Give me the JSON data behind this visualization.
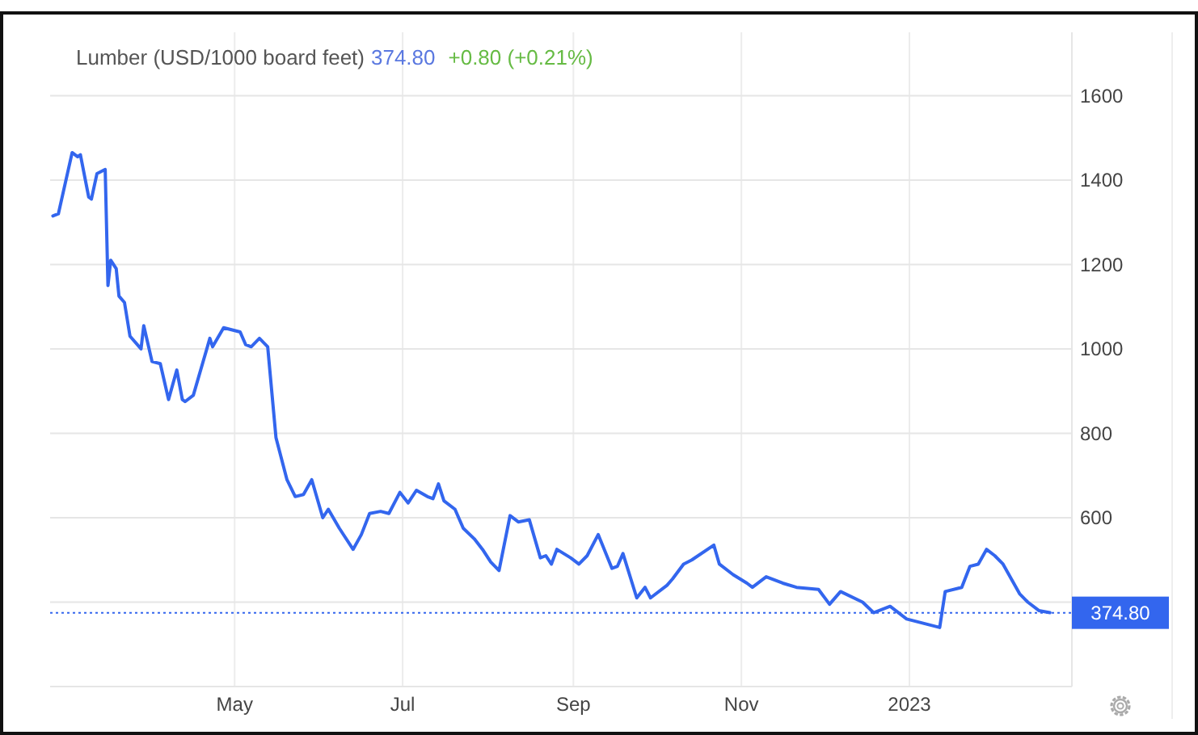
{
  "chart_data": {
    "type": "line",
    "title": "Lumber (USD/1000 board feet)",
    "annotations": [
      "374.80",
      "+0.80 (+0.21%)"
    ],
    "x": [
      "2022-02-24",
      "2022-02-26",
      "2022-03-03",
      "2022-03-05",
      "2022-03-06",
      "2022-03-09",
      "2022-03-10",
      "2022-03-12",
      "2022-03-15",
      "2022-03-16",
      "2022-03-17",
      "2022-03-19",
      "2022-03-20",
      "2022-03-22",
      "2022-03-24",
      "2022-03-28",
      "2022-03-29",
      "2022-04-01",
      "2022-04-04",
      "2022-04-07",
      "2022-04-10",
      "2022-04-12",
      "2022-04-13",
      "2022-04-16",
      "2022-04-18",
      "2022-04-22",
      "2022-04-23",
      "2022-04-27",
      "2022-05-03",
      "2022-05-05",
      "2022-05-07",
      "2022-05-10",
      "2022-05-13",
      "2022-05-16",
      "2022-05-20",
      "2022-05-23",
      "2022-05-26",
      "2022-05-29",
      "2022-06-02",
      "2022-06-04",
      "2022-06-08",
      "2022-06-13",
      "2022-06-16",
      "2022-06-19",
      "2022-06-23",
      "2022-06-26",
      "2022-06-30",
      "2022-07-03",
      "2022-07-06",
      "2022-07-10",
      "2022-07-12",
      "2022-07-14",
      "2022-07-16",
      "2022-07-20",
      "2022-07-23",
      "2022-07-27",
      "2022-07-30",
      "2022-08-02",
      "2022-08-05",
      "2022-08-09",
      "2022-08-12",
      "2022-08-16",
      "2022-08-20",
      "2022-08-22",
      "2022-08-24",
      "2022-08-26",
      "2022-08-31",
      "2022-09-03",
      "2022-09-06",
      "2022-09-10",
      "2022-09-15",
      "2022-09-17",
      "2022-09-19",
      "2022-09-24",
      "2022-09-27",
      "2022-09-29",
      "2022-10-05",
      "2022-10-07",
      "2022-10-11",
      "2022-10-14",
      "2022-10-22",
      "2022-10-24",
      "2022-10-29",
      "2022-11-03",
      "2022-11-05",
      "2022-11-10",
      "2022-11-16",
      "2022-11-21",
      "2022-11-29",
      "2022-12-03",
      "2022-12-07",
      "2022-12-15",
      "2022-12-19",
      "2022-12-25",
      "2022-12-31",
      "2023-01-06",
      "2023-01-12",
      "2023-01-14",
      "2023-01-20",
      "2023-01-23",
      "2023-01-26",
      "2023-01-29",
      "2023-02-01",
      "2023-02-04",
      "2023-02-10",
      "2023-02-13",
      "2023-02-17",
      "2023-02-21"
    ],
    "series": [
      {
        "color": "#3366ee",
        "values": [
          1315,
          1320,
          1465,
          1455,
          1460,
          1360,
          1355,
          1415,
          1425,
          1150,
          1210,
          1190,
          1125,
          1110,
          1030,
          1000,
          1055,
          970,
          965,
          880,
          950,
          880,
          875,
          890,
          935,
          1025,
          1005,
          1050,
          1040,
          1010,
          1005,
          1025,
          1005,
          790,
          690,
          650,
          655,
          690,
          600,
          620,
          575,
          525,
          560,
          610,
          615,
          610,
          660,
          635,
          665,
          650,
          645,
          680,
          640,
          620,
          575,
          550,
          525,
          495,
          475,
          605,
          590,
          595,
          505,
          510,
          490,
          525,
          505,
          490,
          510,
          560,
          480,
          485,
          515,
          410,
          435,
          410,
          440,
          455,
          490,
          500,
          535,
          490,
          465,
          445,
          435,
          460,
          445,
          435,
          430,
          395,
          425,
          400,
          375,
          390,
          360,
          350,
          340,
          425,
          435,
          485,
          490,
          525,
          510,
          490,
          420,
          400,
          380,
          375
        ]
      }
    ],
    "xlim": [
      "2022-02-23",
      "2023-03-01"
    ],
    "xticks": [
      {
        "value": "2022-05-01",
        "label": "May"
      },
      {
        "value": "2022-07-01",
        "label": "Jul"
      },
      {
        "value": "2022-09-01",
        "label": "Sep"
      },
      {
        "value": "2022-11-01",
        "label": "Nov"
      },
      {
        "value": "2023-01-01",
        "label": "2023"
      }
    ],
    "ylim": [
      200,
      1750
    ],
    "yticks": [
      {
        "value": 200,
        "label": null
      },
      {
        "value": 400,
        "label": null
      },
      600,
      800,
      1000,
      1200,
      1400,
      1600
    ],
    "ref_lines": [
      {
        "axis": "y",
        "value": 374.8,
        "label": "374.80",
        "color": "#3366ee",
        "line_style": "dotted"
      }
    ],
    "grid": true,
    "marker": "none",
    "line_style": "solid"
  }
}
